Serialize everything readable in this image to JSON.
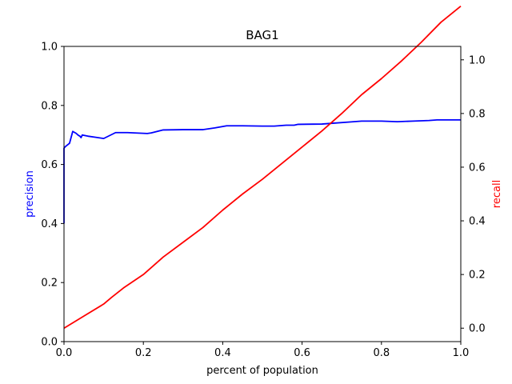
{
  "chart_data": {
    "type": "line",
    "title": "BAG1",
    "xlabel": "percent of population",
    "ylabel_left": "precision",
    "ylabel_right": "recall",
    "xlim": [
      0.0,
      1.0
    ],
    "ylim_left": [
      0.0,
      1.0
    ],
    "ylim_right": [
      -0.05,
      1.05
    ],
    "x_ticks": [
      "0.0",
      "0.2",
      "0.4",
      "0.6",
      "0.8",
      "1.0"
    ],
    "y_left_ticks": [
      "0.0",
      "0.2",
      "0.4",
      "0.6",
      "0.8",
      "1.0"
    ],
    "y_right_ticks": [
      "0.0",
      "0.2",
      "0.4",
      "0.6",
      "0.8",
      "1.0"
    ],
    "grid": false,
    "colors": {
      "precision": "#0000ff",
      "recall": "#ff0000",
      "axes": "#000000"
    },
    "series": [
      {
        "axis": "left",
        "x": [
          0.0,
          0.0,
          0.003,
          0.014,
          0.018,
          0.022,
          0.03,
          0.036,
          0.04,
          0.043,
          0.046,
          0.06,
          0.08,
          0.1,
          0.13,
          0.16,
          0.21,
          0.22,
          0.25,
          0.3,
          0.35,
          0.38,
          0.41,
          0.45,
          0.5,
          0.53,
          0.56,
          0.58,
          0.59,
          0.65,
          0.68,
          0.72,
          0.75,
          0.8,
          0.84,
          0.88,
          0.92,
          0.94,
          0.98,
          1.0
        ],
        "values": [
          0.4,
          0.655,
          0.66,
          0.672,
          0.692,
          0.712,
          0.706,
          0.699,
          0.696,
          0.691,
          0.7,
          0.696,
          0.692,
          0.688,
          0.708,
          0.708,
          0.705,
          0.707,
          0.717,
          0.718,
          0.718,
          0.724,
          0.731,
          0.731,
          0.73,
          0.73,
          0.733,
          0.733,
          0.736,
          0.737,
          0.74,
          0.744,
          0.747,
          0.747,
          0.745,
          0.747,
          0.749,
          0.751,
          0.751,
          0.751
        ]
      },
      {
        "axis": "right",
        "x": [
          0.0,
          0.05,
          0.1,
          0.12,
          0.15,
          0.2,
          0.25,
          0.3,
          0.35,
          0.4,
          0.45,
          0.5,
          0.55,
          0.6,
          0.65,
          0.7,
          0.75,
          0.8,
          0.85,
          0.9,
          0.95,
          1.0
        ],
        "values": [
          0.0,
          0.045,
          0.09,
          0.115,
          0.15,
          0.2,
          0.265,
          0.32,
          0.375,
          0.44,
          0.5,
          0.555,
          0.615,
          0.675,
          0.735,
          0.8,
          0.87,
          0.93,
          0.995,
          1.065,
          1.14,
          1.2
        ]
      }
    ]
  }
}
